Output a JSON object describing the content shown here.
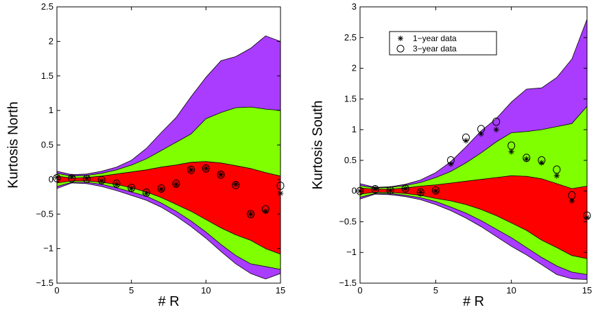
{
  "chart_data": [
    {
      "type": "area",
      "xlabel": "# R",
      "ylabel": "Kurtosis North",
      "xlim": [
        0,
        15
      ],
      "ylim": [
        -1.5,
        2.5
      ],
      "xticks": [
        0,
        5,
        10,
        15
      ],
      "yticks": [
        -1.5,
        -1,
        -0.5,
        0,
        0.5,
        1,
        1.5,
        2,
        2.5
      ],
      "ytick_labels": [
        "−1.5",
        "−1",
        "−0.5",
        "0",
        "0.5",
        "1",
        "1.5",
        "2",
        "2.5"
      ],
      "bands": {
        "x": [
          0,
          1,
          2,
          3,
          4,
          5,
          6,
          7,
          8,
          9,
          10,
          11,
          12,
          13,
          14,
          15
        ],
        "purple_upper": [
          0.12,
          0.07,
          0.08,
          0.12,
          0.18,
          0.28,
          0.45,
          0.68,
          0.9,
          1.2,
          1.48,
          1.72,
          1.78,
          1.9,
          2.08,
          2.0
        ],
        "green_upper": [
          0.09,
          0.05,
          0.06,
          0.09,
          0.14,
          0.21,
          0.3,
          0.42,
          0.54,
          0.66,
          0.88,
          0.97,
          1.04,
          1.05,
          1.02,
          1.0
        ],
        "red_upper": [
          0.05,
          0.02,
          0.03,
          0.05,
          0.08,
          0.11,
          0.14,
          0.18,
          0.21,
          0.25,
          0.26,
          0.24,
          0.2,
          0.16,
          0.1,
          0.05
        ],
        "red_lower": [
          -0.05,
          -0.02,
          -0.02,
          -0.04,
          -0.07,
          -0.12,
          -0.18,
          -0.26,
          -0.36,
          -0.46,
          -0.58,
          -0.7,
          -0.8,
          -0.88,
          -1.0,
          -1.08
        ],
        "green_lower": [
          -0.1,
          -0.04,
          -0.04,
          -0.07,
          -0.12,
          -0.18,
          -0.24,
          -0.34,
          -0.46,
          -0.6,
          -0.76,
          -0.94,
          -1.1,
          -1.22,
          -1.26,
          -1.3
        ],
        "purple_lower": [
          -0.13,
          -0.05,
          -0.06,
          -0.1,
          -0.16,
          -0.23,
          -0.3,
          -0.4,
          -0.53,
          -0.68,
          -0.85,
          -1.04,
          -1.22,
          -1.36,
          -1.44,
          -1.36
        ]
      },
      "series": [
        {
          "name": "1-year data",
          "marker": "asterisk",
          "x": [
            0,
            1,
            2,
            3,
            4,
            5,
            6,
            7,
            8,
            9,
            10,
            11,
            12,
            13,
            14,
            15
          ],
          "y": [
            0.03,
            0.04,
            0.02,
            -0.02,
            -0.07,
            -0.13,
            -0.2,
            -0.14,
            -0.07,
            0.14,
            0.16,
            0.07,
            -0.07,
            -0.5,
            -0.46,
            -0.2
          ]
        },
        {
          "name": "3-year data",
          "marker": "circle",
          "x": [
            0,
            1,
            2,
            3,
            4,
            5,
            6,
            7,
            8,
            9,
            10,
            11,
            12,
            13,
            14,
            15
          ],
          "y": [
            0.02,
            0.02,
            0.01,
            -0.01,
            -0.06,
            -0.12,
            -0.19,
            -0.13,
            -0.06,
            0.14,
            0.16,
            0.07,
            -0.08,
            -0.5,
            -0.43,
            -0.09
          ]
        }
      ]
    },
    {
      "type": "area",
      "xlabel": "# R",
      "ylabel": "Kurtosis South",
      "xlim": [
        0,
        15
      ],
      "ylim": [
        -1.5,
        3
      ],
      "xticks": [
        0,
        5,
        10,
        15
      ],
      "yticks": [
        -1.5,
        -1,
        -0.5,
        0,
        0.5,
        1,
        1.5,
        2,
        2.5,
        3
      ],
      "ytick_labels": [
        "−1.5",
        "−1",
        "−0.5",
        "0",
        "0.5",
        "1",
        "1.5",
        "2",
        "2.5",
        "3"
      ],
      "legend": {
        "position": "top-left",
        "entries": [
          "1−year data",
          "3−year data"
        ]
      },
      "bands": {
        "x": [
          0,
          1,
          2,
          3,
          4,
          5,
          6,
          7,
          8,
          9,
          10,
          11,
          12,
          13,
          14,
          15
        ],
        "purple_upper": [
          0.12,
          0.06,
          0.07,
          0.11,
          0.18,
          0.3,
          0.48,
          0.72,
          0.98,
          1.18,
          1.45,
          1.66,
          1.68,
          1.85,
          2.15,
          2.8
        ],
        "green_upper": [
          0.09,
          0.05,
          0.06,
          0.09,
          0.14,
          0.22,
          0.32,
          0.46,
          0.62,
          0.8,
          0.95,
          0.97,
          1.0,
          1.05,
          1.1,
          1.38
        ],
        "red_upper": [
          0.05,
          0.03,
          0.03,
          0.05,
          0.08,
          0.1,
          0.13,
          0.16,
          0.19,
          0.22,
          0.25,
          0.24,
          0.2,
          0.12,
          0.04,
          0.08
        ],
        "red_lower": [
          -0.05,
          -0.02,
          -0.02,
          -0.04,
          -0.07,
          -0.12,
          -0.16,
          -0.22,
          -0.3,
          -0.4,
          -0.52,
          -0.64,
          -0.8,
          -0.92,
          -1.05,
          -1.1
        ],
        "green_lower": [
          -0.1,
          -0.04,
          -0.04,
          -0.07,
          -0.11,
          -0.17,
          -0.26,
          -0.36,
          -0.48,
          -0.62,
          -0.76,
          -0.92,
          -1.08,
          -1.22,
          -1.32,
          -1.36
        ],
        "purple_lower": [
          -0.13,
          -0.05,
          -0.06,
          -0.09,
          -0.14,
          -0.22,
          -0.32,
          -0.44,
          -0.58,
          -0.74,
          -0.9,
          -1.04,
          -1.2,
          -1.36,
          -1.43,
          -1.44
        ]
      },
      "series": [
        {
          "name": "1-year data",
          "marker": "asterisk",
          "x": [
            0,
            1,
            2,
            3,
            4,
            5,
            6,
            7,
            8,
            9,
            10,
            11,
            12,
            13,
            14,
            15
          ],
          "y": [
            0.0,
            0.04,
            0.01,
            0.04,
            -0.02,
            0.0,
            0.44,
            0.82,
            0.93,
            1.0,
            0.64,
            0.52,
            0.46,
            0.25,
            -0.16,
            -0.43
          ]
        },
        {
          "name": "3-year data",
          "marker": "circle",
          "x": [
            0,
            1,
            2,
            3,
            4,
            5,
            6,
            7,
            8,
            9,
            10,
            11,
            12,
            13,
            14,
            15
          ],
          "y": [
            0.0,
            0.03,
            0.01,
            0.04,
            -0.02,
            0.01,
            0.5,
            0.87,
            1.01,
            1.13,
            0.74,
            0.54,
            0.5,
            0.35,
            -0.07,
            -0.4
          ]
        }
      ]
    }
  ],
  "colors": {
    "purple": "#a93cff",
    "green": "#7fff00",
    "red": "#ff0000",
    "ink": "#000000",
    "background": "#ffffff"
  }
}
